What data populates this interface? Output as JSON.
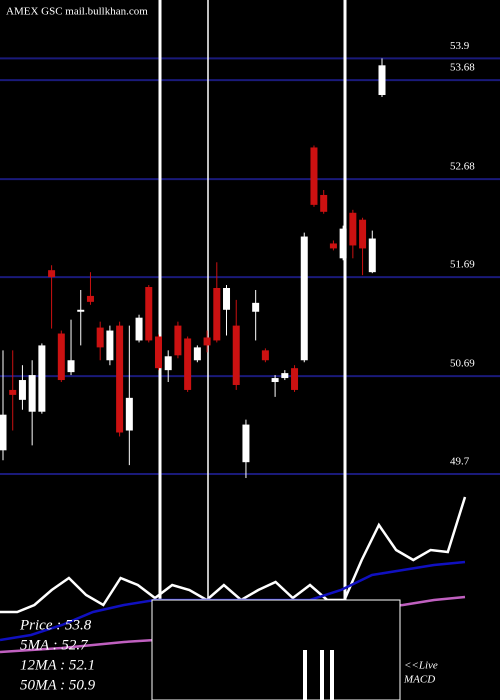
{
  "chart_data": {
    "type": "candlestick",
    "title": "AMEX  GSC mail.bullkhan.com",
    "up_color": "#ffffff",
    "down_color": "#cc1111",
    "grid_color": "#1a1a7a",
    "ylim": [
      49.64,
      54.49
    ],
    "yticks": [
      53.9,
      53.68,
      52.68,
      51.69,
      50.69,
      49.7
    ],
    "open": [
      49.94,
      50.55,
      50.45,
      50.33,
      50.33,
      51.76,
      51.12,
      50.73,
      51.34,
      51.5,
      51.18,
      50.85,
      51.2,
      50.14,
      51.05,
      51.59,
      51.09,
      50.75,
      51.2,
      51.07,
      50.85,
      51.08,
      51.58,
      51.36,
      51.2,
      49.82,
      51.34,
      50.95,
      50.63,
      50.67,
      50.77,
      50.85,
      53.0,
      52.52,
      52.03,
      51.88,
      52.34,
      52.27,
      51.74,
      53.53
    ],
    "high": [
      50.95,
      50.95,
      50.8,
      50.85,
      51.02,
      51.81,
      51.15,
      51.26,
      51.56,
      51.74,
      51.24,
      51.2,
      51.24,
      51.2,
      51.31,
      51.61,
      51.11,
      50.95,
      51.24,
      51.09,
      51.0,
      51.15,
      51.84,
      51.61,
      51.46,
      50.25,
      51.56,
      50.97,
      50.7,
      50.75,
      50.8,
      52.14,
      53.02,
      52.57,
      52.06,
      52.21,
      52.37,
      52.29,
      52.16,
      53.9
    ],
    "low": [
      49.84,
      50.14,
      50.35,
      49.99,
      50.31,
      51.17,
      50.63,
      50.7,
      51.0,
      51.41,
      50.85,
      50.8,
      50.08,
      49.79,
      51.03,
      51.03,
      50.75,
      50.63,
      50.87,
      50.53,
      50.83,
      50.93,
      51.03,
      51.1,
      50.55,
      49.66,
      51.05,
      50.83,
      50.48,
      50.65,
      50.53,
      50.83,
      52.4,
      52.33,
      51.96,
      51.86,
      51.88,
      51.71,
      51.73,
      53.51
    ],
    "close": [
      50.3,
      50.5,
      50.65,
      50.7,
      51.0,
      51.69,
      50.65,
      50.85,
      51.36,
      51.44,
      50.98,
      51.15,
      50.12,
      50.47,
      51.28,
      51.05,
      50.77,
      50.89,
      50.9,
      50.55,
      50.98,
      51.0,
      51.05,
      51.58,
      50.6,
      50.2,
      51.43,
      50.85,
      50.67,
      50.72,
      50.55,
      52.1,
      52.42,
      52.35,
      51.98,
      52.18,
      52.01,
      51.98,
      52.08,
      53.83
    ],
    "legend": [
      "Price   : 53.8",
      "5MA : 52.7",
      "12MA : 52.1",
      "50MA : 50.9"
    ],
    "live_label": "<<Live",
    "macd_label": "MACD",
    "lower_panel": {
      "ylim": [
        0,
        220
      ],
      "series": [
        {
          "color": "#ffffff",
          "values": [
            88,
            88,
            95,
            110,
            122,
            105,
            95,
            122,
            115,
            102,
            115,
            110,
            100,
            115,
            100,
            110,
            118,
            102,
            115,
            100,
            100,
            140,
            175,
            150,
            140,
            150,
            148,
            203
          ]
        },
        {
          "color": "#1010c0",
          "values": [
            60,
            65,
            75,
            88,
            95,
            100,
            100,
            100,
            100,
            100,
            100,
            110,
            125,
            130,
            135,
            138
          ]
        },
        {
          "color": "#c060c0",
          "values": [
            48,
            50,
            52,
            55,
            58,
            60,
            62,
            65,
            70,
            75,
            80,
            85,
            92,
            95,
            100,
            103
          ]
        }
      ]
    }
  }
}
